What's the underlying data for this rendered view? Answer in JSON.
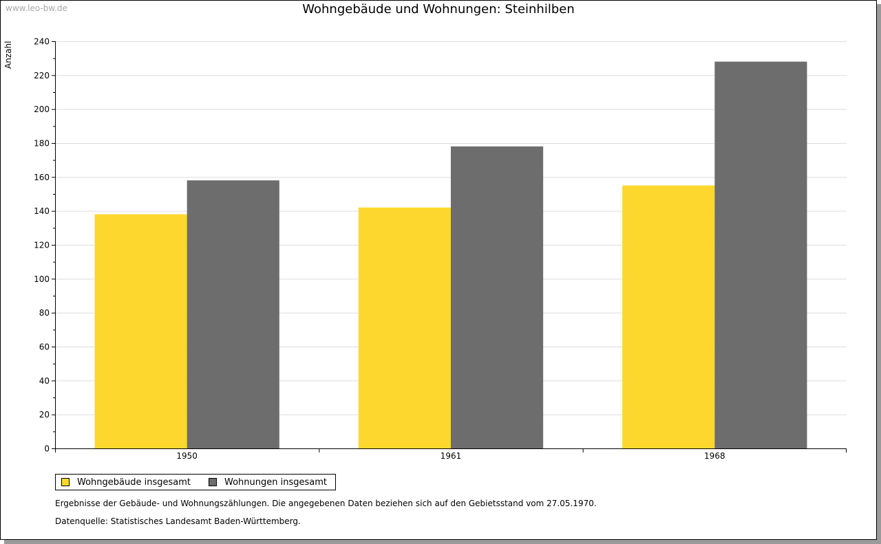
{
  "watermark": "www.leo-bw.de",
  "chart_data": {
    "type": "bar",
    "title": "Wohngebäude und Wohnungen: Steinhilben",
    "xlabel": "",
    "ylabel": "Anzahl",
    "categories": [
      "1950",
      "1961",
      "1968"
    ],
    "series": [
      {
        "name": "Wohngebäude insgesamt",
        "color": "#fdd72d",
        "values": [
          138,
          142,
          155
        ]
      },
      {
        "name": "Wohnungen insgesamt",
        "color": "#6d6d6d",
        "values": [
          158,
          178,
          228
        ]
      }
    ],
    "ylim": [
      0,
      240
    ],
    "yticks": [
      0,
      20,
      40,
      60,
      80,
      100,
      120,
      140,
      160,
      180,
      200,
      220,
      240
    ],
    "grid": true,
    "legend_position": "bottom-left"
  },
  "notes": {
    "description": "Ergebnisse der Gebäude- und Wohnungszählungen. Die angegebenen Daten beziehen sich auf den Gebietsstand vom 27.05.1970.",
    "source": "Datenquelle: Statistisches Landesamt Baden-Württemberg."
  }
}
